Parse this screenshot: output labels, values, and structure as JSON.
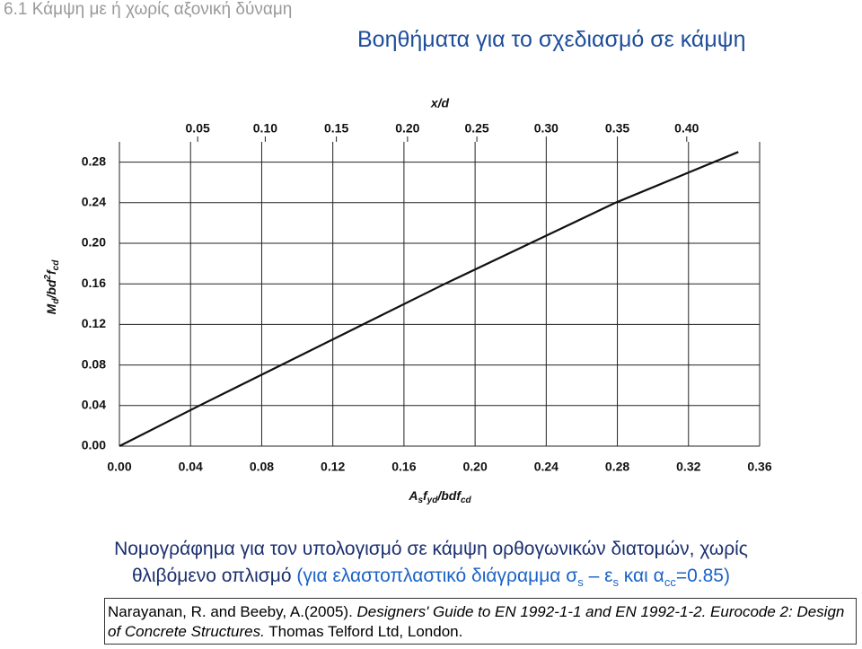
{
  "header": {
    "section": "6.1 Κάμψη με ή χωρίς αξονική δύναμη",
    "title": "Βοηθήματα για το σχεδιασμό σε κάμψη"
  },
  "chart_data": {
    "type": "line",
    "x_label": [
      "A",
      "s",
      "f",
      "yd",
      "/bdf",
      "cd"
    ],
    "y_label": [
      "M",
      "d",
      "/bd",
      "2",
      "f",
      "cd"
    ],
    "x": [
      0,
      0.045,
      0.091,
      0.137,
      0.183,
      0.231,
      0.279,
      0.348
    ],
    "series": [
      {
        "color": "#111111",
        "values": [
          0,
          0.04,
          0.08,
          0.12,
          0.16,
          0.2,
          0.24,
          0.29
        ]
      }
    ],
    "xlim": [
      0,
      0.36
    ],
    "ylim": [
      0,
      0.3
    ],
    "xticks": [
      {
        "value": 0,
        "label": "0.00"
      },
      0.04,
      0.08,
      0.12,
      0.16,
      {
        "value": 0.2,
        "label": "0.20"
      },
      0.24,
      0.28,
      {
        "value": 0.32,
        "label": "0.32"
      },
      0.36
    ],
    "yticks": [
      {
        "value": 0,
        "label": "0.00"
      },
      0.04,
      0.08,
      0.12,
      0.16,
      {
        "value": 0.2,
        "label": "0.20"
      },
      0.24,
      0.28
    ],
    "top_axis": {
      "label": "x/d",
      "ticks": [
        0.05,
        {
          "value": 0.1,
          "label": "0.10"
        },
        0.15,
        {
          "value": 0.2,
          "label": "0.20"
        },
        0.25,
        {
          "value": 0.3,
          "label": "0.30"
        },
        0.35,
        {
          "value": 0.4,
          "label": "0.40"
        }
      ],
      "at_x": [
        0.044,
        0.082,
        0.122,
        0.162,
        0.201,
        0.24,
        0.28,
        0.319
      ]
    },
    "grid": true
  },
  "caption": {
    "line1": "Νομογράφημα για τον υπολογισμό σε κάμψη ορθογωνικών διατομών, χωρίς",
    "line2": "θλιβόμενο οπλισμό",
    "note": [
      "(για ελαστοπλαστικό διάγραμμα σ",
      "s",
      " – ε",
      "s",
      " και α",
      "cc",
      "=0.85)"
    ]
  },
  "reference": [
    "Narayanan, R. and Beeby, A.(2005). ",
    "Designers' Guide to EN 1992-1-1 and EN 1992-1-2. Eurocode 2: Design of Concrete Structures.",
    " Thomas Telford Ltd, London."
  ]
}
